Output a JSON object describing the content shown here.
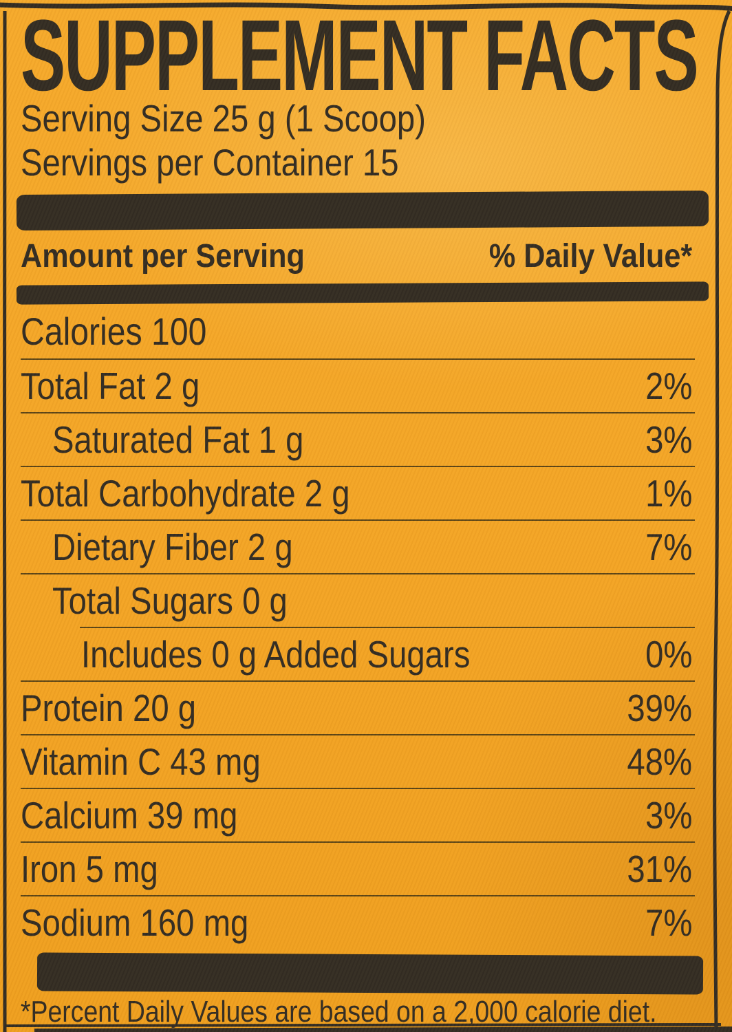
{
  "colors": {
    "background": "#f4a526",
    "ink": "#2f2a23",
    "divider": "#4c3b16"
  },
  "title": "SUPPLEMENT FACTS",
  "serving_size": "Serving Size 25 g (1 Scoop)",
  "servings_per_container": "Servings per Container 15",
  "columns": {
    "amount": "Amount per Serving",
    "daily_value": "% Daily Value*"
  },
  "calories_text": "Calories 100",
  "rows": [
    {
      "name": "Total Fat 2 g",
      "dv": "2%",
      "indent": 0
    },
    {
      "name": "Saturated Fat 1 g",
      "dv": "3%",
      "indent": 1
    },
    {
      "name": "Total Carbohydrate 2 g",
      "dv": "1%",
      "indent": 0
    },
    {
      "name": "Dietary Fiber 2 g",
      "dv": "7%",
      "indent": 1
    },
    {
      "name": "Total Sugars 0 g",
      "dv": "",
      "indent": 1
    },
    {
      "name": "Includes 0 g Added Sugars",
      "dv": "0%",
      "indent": 2,
      "divider_indent": true
    },
    {
      "name": "Protein 20 g",
      "dv": "39%",
      "indent": 0
    },
    {
      "name": "Vitamin C 43 mg",
      "dv": "48%",
      "indent": 0
    },
    {
      "name": "Calcium 39 mg",
      "dv": "3%",
      "indent": 0
    },
    {
      "name": "Iron 5 mg",
      "dv": "31%",
      "indent": 0
    },
    {
      "name": "Sodium 160 mg",
      "dv": "7%",
      "indent": 0
    }
  ],
  "footnote": "*Percent Daily Values are based on a 2,000 calorie diet."
}
